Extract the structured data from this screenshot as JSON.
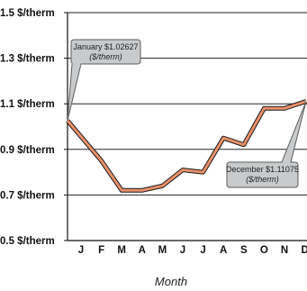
{
  "chart_data": {
    "type": "line",
    "xlabel": "Month",
    "categories": [
      "J",
      "F",
      "M",
      "A",
      "M",
      "J",
      "J",
      "A",
      "S",
      "O",
      "N",
      "D"
    ],
    "yticks": [
      "0.5 $/therm",
      "0.7 $/therm",
      "0.9 $/therm",
      "1.1 $/therm",
      "1.3 $/therm",
      "1.5 $/therm"
    ],
    "ylim": [
      0.5,
      1.5
    ],
    "ytick_values": [
      0.5,
      0.7,
      0.9,
      1.1,
      1.3,
      1.5
    ],
    "grid": "horizontal",
    "series": [
      {
        "values": [
          1.02627,
          0.85,
          0.72,
          0.72,
          0.74,
          0.81,
          0.8,
          0.95,
          0.92,
          1.08,
          1.08,
          1.11075
        ]
      }
    ],
    "annotations": [
      {
        "point_index": 0,
        "text": "January $1.02627",
        "unit": "($/therm)"
      },
      {
        "point_index": 11,
        "text": "December $1.11075",
        "unit": "($/therm)"
      }
    ],
    "colors": {
      "line_fill": "#e8906a",
      "line_edge": "#1a1a1a",
      "axis": "#111111",
      "grid": "#222222",
      "callout_fill": "#c8cacc",
      "callout_edge": "#5a5c5e"
    }
  }
}
